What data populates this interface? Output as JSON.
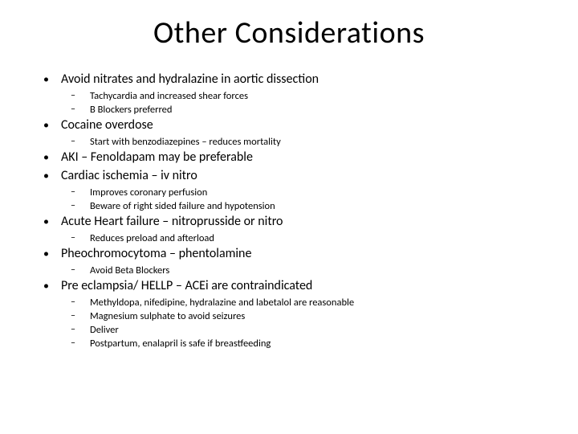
{
  "title": "Other Considerations",
  "items": [
    {
      "text": "Avoid nitrates and hydralazine in aortic dissection",
      "subs": [
        "Tachycardia and increased shear forces",
        "B Blockers preferred"
      ]
    },
    {
      "text": "Cocaine overdose",
      "subs": [
        "Start with benzodiazepines – reduces mortality"
      ]
    },
    {
      "text": "AKI – Fenoldapam may be preferable",
      "subs": []
    },
    {
      "text": "Cardiac ischemia – iv nitro",
      "subs": [
        "Improves coronary perfusion",
        "Beware of right sided failure and hypotension"
      ]
    },
    {
      "text": "Acute Heart failure – nitroprusside or nitro",
      "subs": [
        "Reduces preload and afterload"
      ]
    },
    {
      "text": "Pheochromocytoma – phentolamine",
      "subs": [
        "Avoid Beta Blockers"
      ]
    },
    {
      "text": "Pre eclampsia/ HELLP – ACEi are contraindicated",
      "subs": [
        "Methyldopa, nifedipine, hydralazine and labetalol are reasonable",
        "Magnesium sulphate to avoid seizures",
        "Deliver",
        "Postpartum, enalapril is safe if breastfeeding"
      ]
    }
  ],
  "style": {
    "background_color": "#ffffff",
    "text_color": "#000000",
    "title_fontsize": 38,
    "bullet_fontsize": 16,
    "sub_fontsize": 12.5,
    "bullet_mark": "•",
    "sub_mark": "–"
  }
}
